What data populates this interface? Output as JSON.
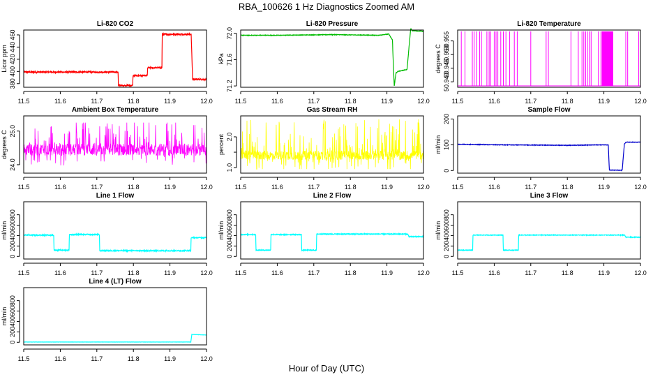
{
  "title": "RBA_100626  1 Hz Diagnostics Zoomed AM",
  "xlabel": "Hour of Day (UTC)",
  "chart_data": [
    {
      "type": "line",
      "title": "Li-820 CO2",
      "ylabel": "Licor ppm",
      "color": "#ff0000",
      "xlim": [
        11.5,
        12.0
      ],
      "ylim": [
        374,
        468
      ],
      "xticks": [
        11.5,
        11.6,
        11.7,
        11.8,
        11.9,
        12.0
      ],
      "yticks": [
        380,
        400,
        420,
        440,
        460
      ],
      "noise": 1.2,
      "x": [
        11.5,
        11.758,
        11.759,
        11.798,
        11.799,
        11.838,
        11.839,
        11.878,
        11.879,
        11.958,
        11.962,
        12.0
      ],
      "y": [
        399,
        399,
        377,
        377,
        393,
        393,
        406,
        406,
        461,
        461,
        387,
        387
      ]
    },
    {
      "type": "line",
      "title": "Li-820 Pressure",
      "ylabel": "kPa",
      "color": "#00bb00",
      "xlim": [
        11.5,
        12.0
      ],
      "ylim": [
        71.18,
        72.05
      ],
      "xticks": [
        11.5,
        11.6,
        11.7,
        11.8,
        11.9,
        12.0
      ],
      "yticks": [
        71.2,
        71.6,
        72.0
      ],
      "yticklabels": [
        "71.2",
        "71.6",
        "72.0"
      ],
      "noise": 0.004,
      "x": [
        11.5,
        11.6,
        11.75,
        11.88,
        11.905,
        11.915,
        11.92,
        11.925,
        11.93,
        11.955,
        11.965,
        11.97,
        12.0
      ],
      "y": [
        71.97,
        71.97,
        71.98,
        71.97,
        71.99,
        71.9,
        71.2,
        71.4,
        71.42,
        71.45,
        72.07,
        72.04,
        72.03
      ]
    },
    {
      "type": "line",
      "title": "Li-820 Temperature",
      "ylabel": "degrees C",
      "color": "#ff00ff",
      "xlim": [
        11.5,
        12.0
      ],
      "ylim": [
        50.938,
        50.959
      ],
      "xticks": [
        11.5,
        11.6,
        11.7,
        11.8,
        11.9,
        12.0
      ],
      "yticks": [
        50.94,
        50.945,
        50.95,
        50.955
      ],
      "yticklabels": [
        "50.940",
        "50.945",
        "50.950",
        "50.955"
      ],
      "spikes": {
        "base": 50.9385,
        "top": 50.9585,
        "x": [
          11.51,
          11.52,
          11.54,
          11.545,
          11.552,
          11.56,
          11.565,
          11.58,
          11.586,
          11.59,
          11.6,
          11.605,
          11.61,
          11.618,
          11.625,
          11.632,
          11.642,
          11.655,
          11.663,
          11.7,
          11.742,
          11.748,
          11.81,
          11.83,
          11.84,
          11.845,
          11.85,
          11.855,
          11.86,
          11.865,
          11.885,
          11.892,
          11.9,
          11.96,
          11.965,
          11.995
        ],
        "dense": [
          11.895,
          11.925
        ]
      }
    },
    {
      "type": "line",
      "title": "Ambient Box Temperature",
      "ylabel": "degrees C",
      "color": "#ff00ff",
      "xlim": [
        11.5,
        12.0
      ],
      "ylim": [
        23.75,
        25.45
      ],
      "xticks": [
        11.5,
        11.6,
        11.7,
        11.8,
        11.9,
        12.0
      ],
      "yticks": [
        24.0,
        25.0
      ],
      "yticklabels": [
        "24.0",
        "25.0"
      ],
      "band": {
        "center": 24.45,
        "inner": 0.18,
        "outer": 0.75,
        "lo": 23.9,
        "hi": 25.25,
        "amp": 0.8
      }
    },
    {
      "type": "line",
      "title": "Gas Stream RH",
      "ylabel": "percent",
      "color": "#ffff00",
      "xlim": [
        11.5,
        12.0
      ],
      "ylim": [
        0.82,
        2.68
      ],
      "xticks": [
        11.5,
        11.6,
        11.7,
        11.8,
        11.9,
        12.0
      ],
      "yticks": [
        1.0,
        1.5,
        2.0
      ],
      "yticklabels": [
        "1.0",
        "",
        "2.0"
      ],
      "band": {
        "center": 1.4,
        "inner": 0.15,
        "outer": 1.0,
        "lo": 0.95,
        "hi": 2.6,
        "amp": 0.8
      }
    },
    {
      "type": "line",
      "title": "Sample Flow",
      "ylabel": "ml/min",
      "color": "#0000cc",
      "xlim": [
        11.5,
        12.0
      ],
      "ylim": [
        -10,
        212
      ],
      "xticks": [
        11.5,
        11.6,
        11.7,
        11.8,
        11.9,
        12.0
      ],
      "yticks": [
        0,
        100,
        200
      ],
      "noise": 1.0,
      "x": [
        11.5,
        11.6,
        11.8,
        11.912,
        11.915,
        11.95,
        11.956,
        11.96,
        12.0
      ],
      "y": [
        102,
        100,
        98,
        100,
        2,
        1,
        102,
        110,
        110
      ]
    },
    {
      "type": "line",
      "title": "Line 1 Flow",
      "ylabel": "ml/min",
      "color": "#00ffff",
      "xlim": [
        11.5,
        12.0
      ],
      "ylim": [
        -50,
        1050
      ],
      "xticks": [
        11.5,
        11.6,
        11.7,
        11.8,
        11.9,
        12.0
      ],
      "yticks": [
        0,
        200,
        400,
        600,
        800
      ],
      "noise": 10,
      "x": [
        11.5,
        11.582,
        11.583,
        11.624,
        11.625,
        11.707,
        11.708,
        11.957,
        11.958,
        12.0
      ],
      "y": [
        410,
        410,
        120,
        120,
        420,
        420,
        110,
        110,
        360,
        360
      ]
    },
    {
      "type": "line",
      "title": "Line 2 Flow",
      "ylabel": "ml/min",
      "color": "#00ffff",
      "xlim": [
        11.5,
        12.0
      ],
      "ylim": [
        -50,
        1050
      ],
      "xticks": [
        11.5,
        11.6,
        11.7,
        11.8,
        11.9,
        12.0
      ],
      "yticks": [
        0,
        200,
        400,
        600,
        800
      ],
      "noise": 8,
      "x": [
        11.5,
        11.541,
        11.542,
        11.582,
        11.583,
        11.666,
        11.667,
        11.707,
        11.708,
        11.957,
        11.96,
        12.0
      ],
      "y": [
        420,
        420,
        120,
        120,
        420,
        420,
        120,
        120,
        430,
        430,
        380,
        380
      ]
    },
    {
      "type": "line",
      "title": "Line 3 Flow",
      "ylabel": "ml/min",
      "color": "#00ffff",
      "xlim": [
        11.5,
        12.0
      ],
      "ylim": [
        -50,
        1050
      ],
      "xticks": [
        11.5,
        11.6,
        11.7,
        11.8,
        11.9,
        12.0
      ],
      "yticks": [
        0,
        200,
        400,
        600,
        800
      ],
      "noise": 6,
      "x": [
        11.5,
        11.541,
        11.542,
        11.624,
        11.625,
        11.666,
        11.667,
        11.957,
        11.96,
        12.0
      ],
      "y": [
        120,
        120,
        410,
        410,
        120,
        120,
        410,
        410,
        370,
        370
      ]
    },
    {
      "type": "line",
      "title": "Line 4 (LT) Flow",
      "ylabel": "ml/min",
      "color": "#00ffff",
      "xlim": [
        11.5,
        12.0
      ],
      "ylim": [
        -50,
        1050
      ],
      "xticks": [
        11.5,
        11.6,
        11.7,
        11.8,
        11.9,
        12.0
      ],
      "yticks": [
        0,
        200,
        400,
        600,
        800
      ],
      "noise": 2,
      "x": [
        11.5,
        11.957,
        11.96,
        12.0
      ],
      "y": [
        5,
        5,
        150,
        140
      ]
    }
  ]
}
